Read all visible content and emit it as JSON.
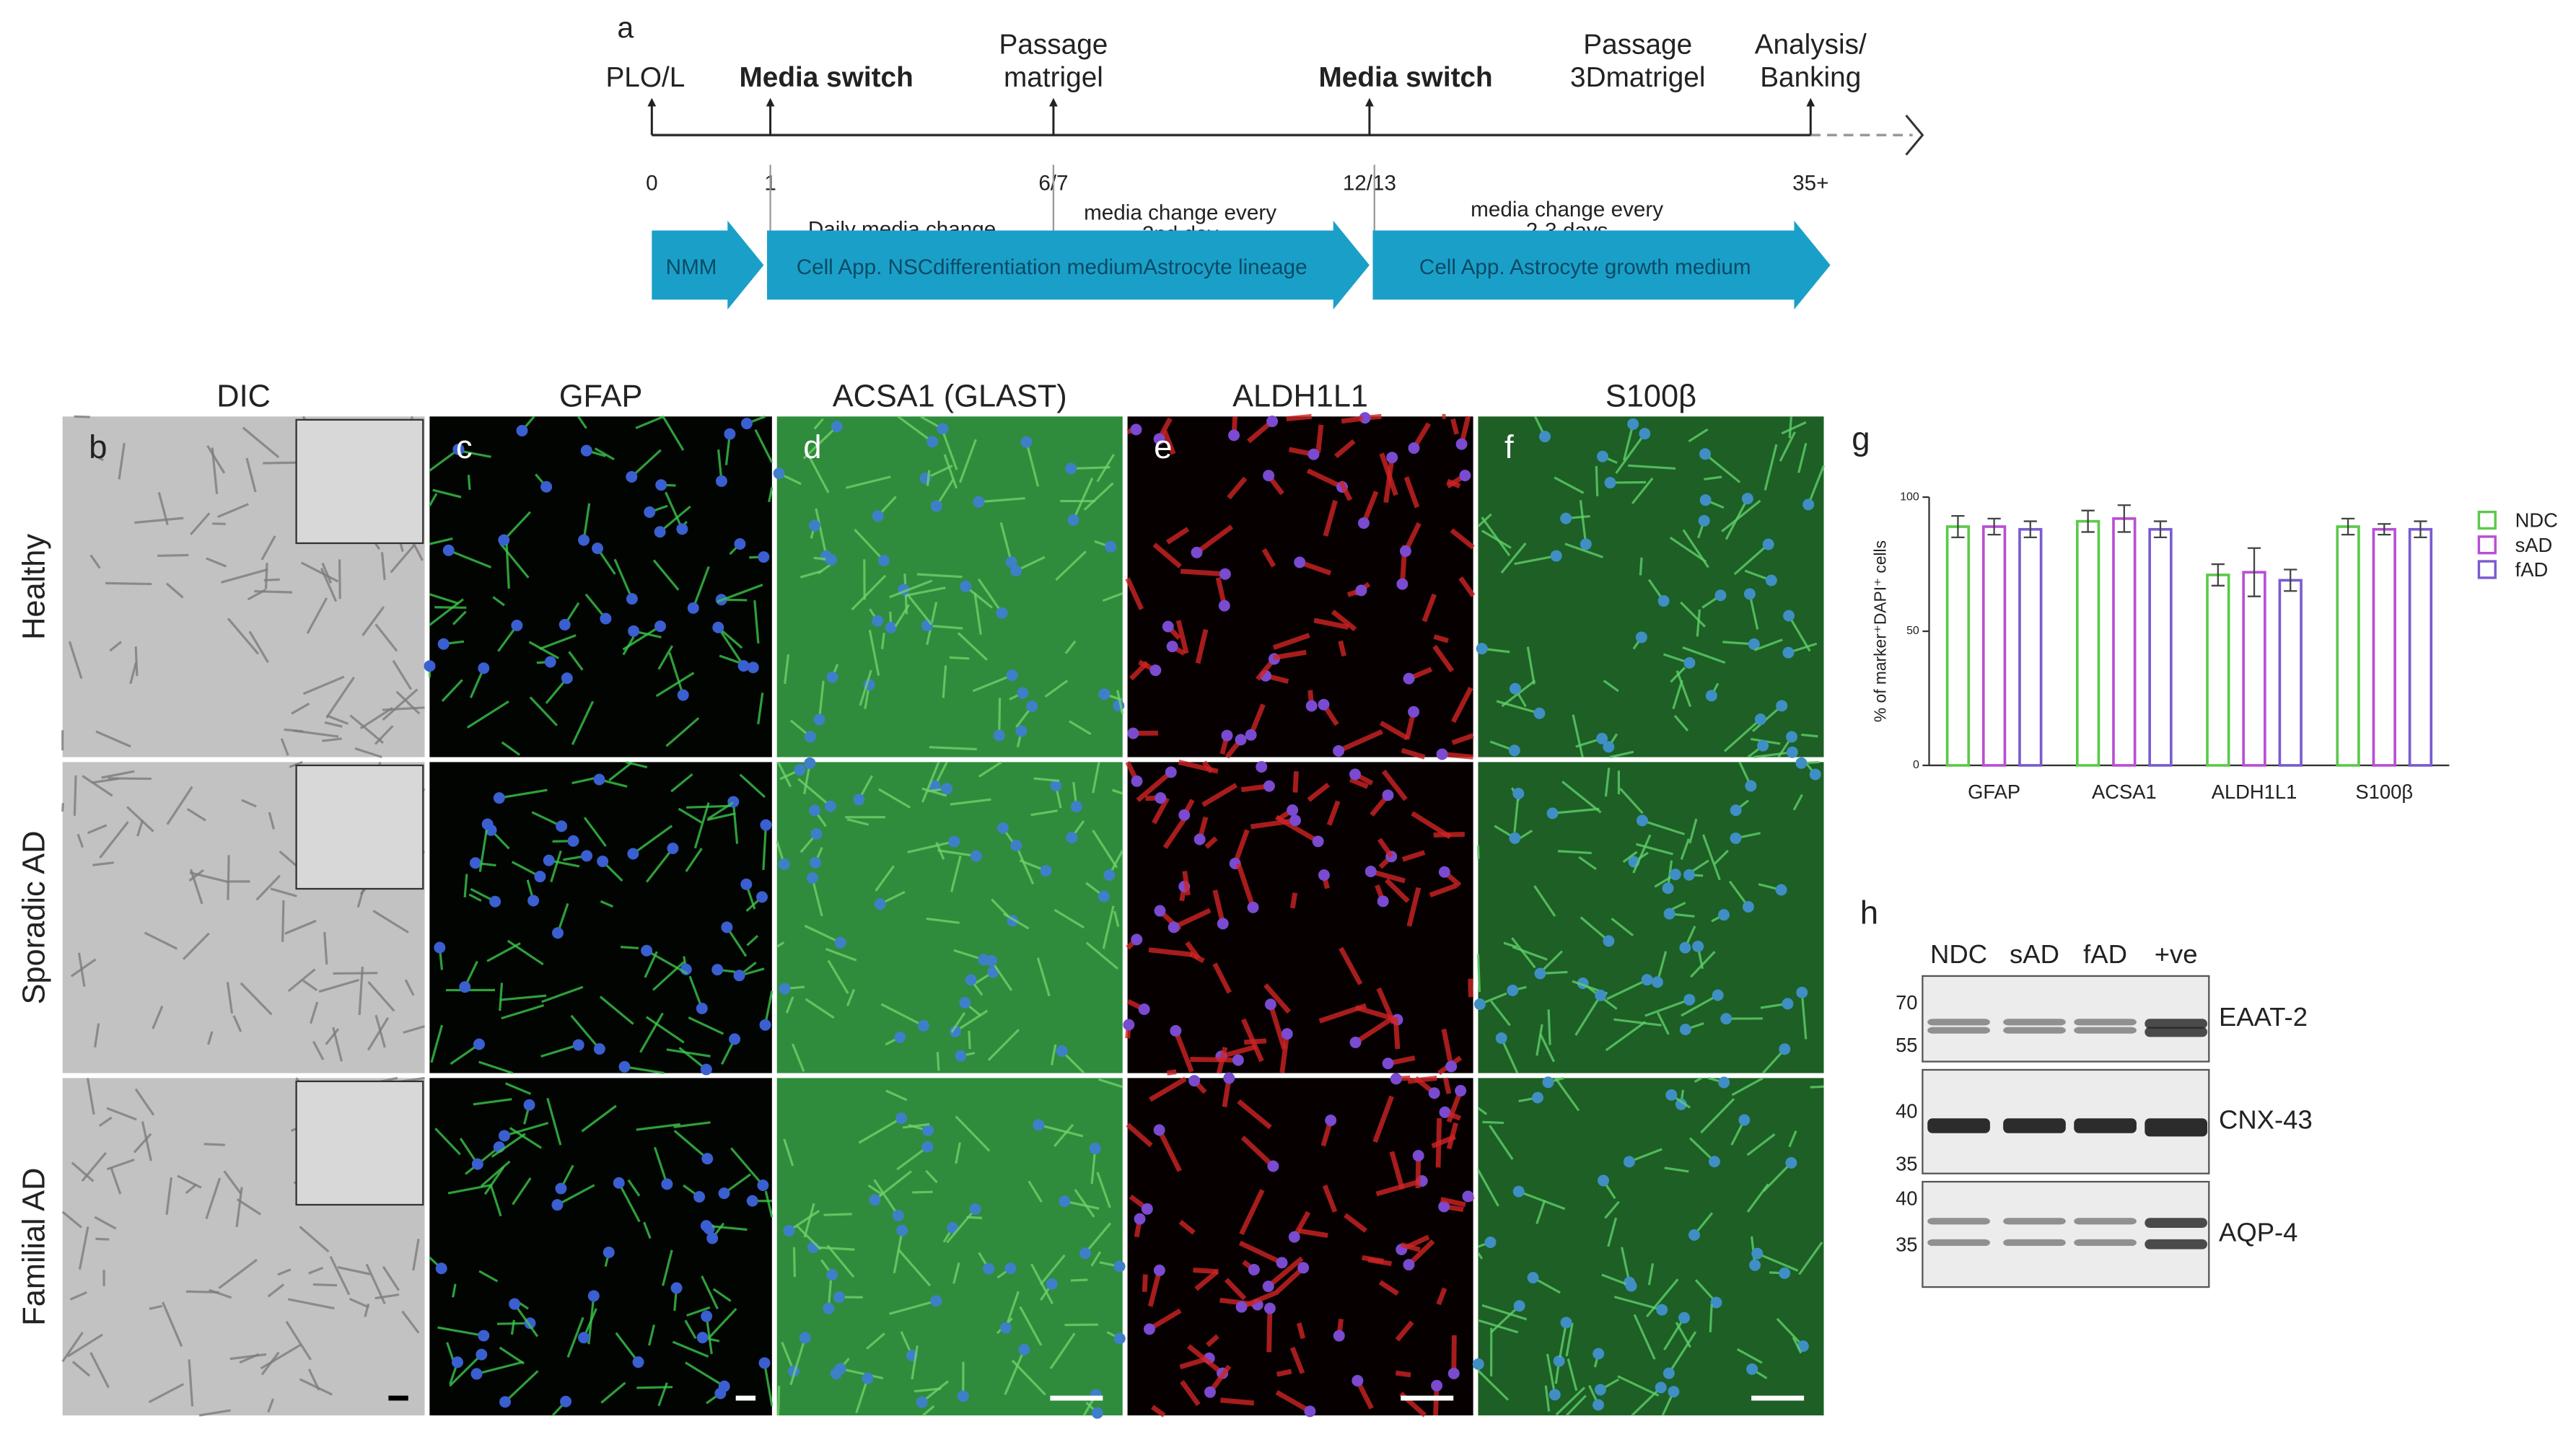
{
  "timeline": {
    "panel_label": "a",
    "events": [
      {
        "lines": [
          "PLO/L"
        ],
        "day": "0",
        "bold": false
      },
      {
        "lines": [
          "Media switch"
        ],
        "day": "1",
        "bold": true
      },
      {
        "lines": [
          "Passage",
          "matrigel"
        ],
        "day": "6/7",
        "bold": false
      },
      {
        "lines": [
          "Media switch"
        ],
        "day": "12/13",
        "bold": true
      },
      {
        "lines": [
          "Passage",
          "3Dmatrigel"
        ],
        "bold": false
      },
      {
        "lines": [
          "Analysis/",
          "Banking"
        ],
        "day": "35+",
        "bold": false
      }
    ],
    "notes": [
      [
        "Daily media change"
      ],
      [
        "media change every",
        "2nd  day"
      ],
      [
        "media change every",
        "2-3 days"
      ]
    ],
    "stages": [
      "NMM",
      "Cell App. NSCdifferentiation mediumAstrocyte lineage",
      "Cell App. Astrocyte growth medium"
    ]
  },
  "micrographs": {
    "columns": [
      "DIC",
      "GFAP",
      "ACSA1 (GLAST)",
      "ALDH1L1",
      "S100β"
    ],
    "panel_labels": [
      "b",
      "c",
      "d",
      "e",
      "f"
    ],
    "rows": [
      "Healthy",
      "Sporadic AD",
      "Familial AD"
    ]
  },
  "chart_data": {
    "type": "bar",
    "panel_label": "g",
    "y_label": "% of marker⁺DAPI⁺ cells",
    "categories": [
      "GFAP",
      "ACSA1",
      "ALDH1L1",
      "S100β"
    ],
    "series": [
      {
        "name": "NDC",
        "color": "#5cc94a",
        "values": [
          89,
          91,
          71,
          89
        ],
        "errors": [
          4,
          4,
          4,
          3
        ]
      },
      {
        "name": "sAD",
        "color": "#b84fd4",
        "values": [
          89,
          92,
          72,
          88
        ],
        "errors": [
          3,
          5,
          9,
          2
        ]
      },
      {
        "name": "fAD",
        "color": "#7a5ccf",
        "values": [
          88,
          88,
          69,
          88
        ],
        "errors": [
          3,
          3,
          4,
          3
        ]
      }
    ],
    "ylim": [
      0,
      100
    ],
    "yticks": [
      0,
      50,
      100
    ],
    "legend": "right"
  },
  "western_blot": {
    "panel_label": "h",
    "lanes": [
      "NDC",
      "sAD",
      "fAD",
      "+ve"
    ],
    "blots": [
      {
        "name": "EAAT-2",
        "markers": [
          "70",
          "55"
        ]
      },
      {
        "name": "CNX-43",
        "markers": [
          "40",
          "35"
        ]
      },
      {
        "name": "AQP-4",
        "markers": [
          "40",
          "35"
        ]
      }
    ]
  }
}
